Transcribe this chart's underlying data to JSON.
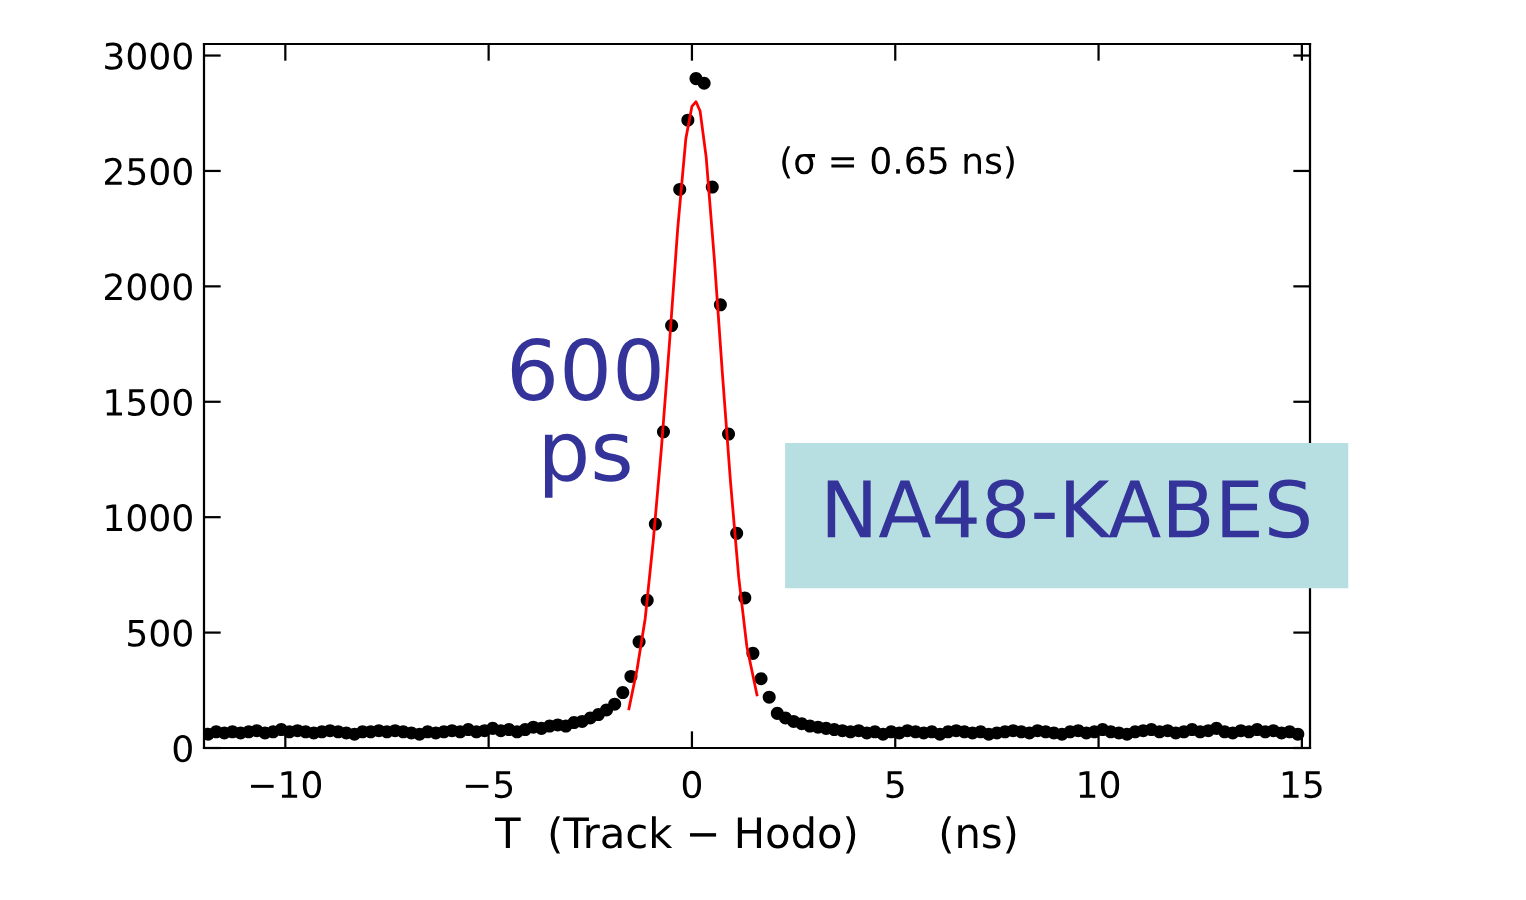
{
  "chart_data": {
    "type": "scatter",
    "xlabel": "T  (Track − Hodo)      (ns)",
    "xlim": [
      -12,
      15.2
    ],
    "ylim": [
      0,
      3050
    ],
    "xticks": [
      {
        "value": -10,
        "label": "−10"
      },
      {
        "value": -5,
        "label": "−5"
      },
      0,
      5,
      10,
      15
    ],
    "yticks": [
      0,
      500,
      1000,
      1500,
      2000,
      2500,
      3000
    ],
    "grid": false,
    "legend": false,
    "series": [
      {
        "color": "#000000",
        "marker": "circle",
        "x": [
          -11.9,
          -11.7,
          -11.5,
          -11.3,
          -11.1,
          -10.9,
          -10.7,
          -10.5,
          -10.3,
          -10.1,
          -9.9,
          -9.7,
          -9.5,
          -9.3,
          -9.1,
          -8.9,
          -8.7,
          -8.5,
          -8.3,
          -8.1,
          -7.9,
          -7.7,
          -7.5,
          -7.3,
          -7.1,
          -6.9,
          -6.7,
          -6.5,
          -6.3,
          -6.1,
          -5.9,
          -5.7,
          -5.5,
          -5.3,
          -5.1,
          -4.9,
          -4.7,
          -4.5,
          -4.3,
          -4.1,
          -3.9,
          -3.7,
          -3.5,
          -3.3,
          -3.1,
          -2.9,
          -2.7,
          -2.5,
          -2.3,
          -2.1,
          -1.9,
          -1.7,
          -1.5,
          -1.3,
          -1.1,
          -0.9,
          -0.7,
          -0.5,
          -0.3,
          -0.1,
          0.1,
          0.3,
          0.5,
          0.7,
          0.9,
          1.1,
          1.3,
          1.5,
          1.7,
          1.9,
          2.1,
          2.3,
          2.5,
          2.7,
          2.9,
          3.1,
          3.3,
          3.5,
          3.7,
          3.9,
          4.1,
          4.3,
          4.5,
          4.7,
          4.9,
          5.1,
          5.3,
          5.5,
          5.7,
          5.9,
          6.1,
          6.3,
          6.5,
          6.7,
          6.9,
          7.1,
          7.3,
          7.5,
          7.7,
          7.9,
          8.1,
          8.3,
          8.5,
          8.7,
          8.9,
          9.1,
          9.3,
          9.5,
          9.7,
          9.9,
          10.1,
          10.3,
          10.5,
          10.7,
          10.9,
          11.1,
          11.3,
          11.5,
          11.7,
          11.9,
          12.1,
          12.3,
          12.5,
          12.7,
          12.9,
          13.1,
          13.3,
          13.5,
          13.7,
          13.9,
          14.1,
          14.3,
          14.5,
          14.7,
          14.9
        ],
        "values": [
          60,
          70,
          65,
          70,
          65,
          70,
          75,
          65,
          70,
          80,
          70,
          75,
          70,
          65,
          70,
          75,
          70,
          65,
          60,
          70,
          70,
          75,
          70,
          75,
          70,
          65,
          60,
          70,
          65,
          70,
          75,
          70,
          80,
          70,
          75,
          85,
          75,
          80,
          70,
          80,
          90,
          85,
          95,
          100,
          95,
          110,
          115,
          130,
          145,
          165,
          190,
          240,
          310,
          460,
          640,
          970,
          1370,
          1830,
          2420,
          2720,
          2900,
          2880,
          2430,
          1920,
          1360,
          930,
          650,
          410,
          300,
          220,
          150,
          130,
          115,
          105,
          95,
          90,
          85,
          80,
          75,
          70,
          75,
          65,
          70,
          60,
          70,
          65,
          75,
          70,
          65,
          70,
          60,
          70,
          75,
          70,
          65,
          70,
          60,
          65,
          70,
          75,
          70,
          65,
          75,
          70,
          65,
          60,
          70,
          75,
          65,
          70,
          80,
          70,
          65,
          60,
          70,
          75,
          80,
          70,
          75,
          65,
          70,
          80,
          70,
          75,
          85,
          70,
          65,
          75,
          70,
          80,
          70,
          75,
          65,
          70,
          60
        ]
      },
      {
        "type": "line",
        "color": "#ff0000",
        "marker": "none",
        "line_style": "solid",
        "x": [
          -1.55,
          -1.35,
          -1.15,
          -0.95,
          -0.75,
          -0.55,
          -0.35,
          -0.15,
          0.0,
          0.1,
          0.2,
          0.35,
          0.55,
          0.75,
          0.95,
          1.15,
          1.35,
          1.6
        ],
        "values": [
          170,
          340,
          560,
          900,
          1300,
          1760,
          2250,
          2640,
          2780,
          2800,
          2760,
          2560,
          2120,
          1620,
          1150,
          740,
          440,
          230
        ]
      }
    ],
    "annotations": [
      "(σ = 0.65 ns)",
      "600\nps",
      "NA48-KABES"
    ]
  }
}
